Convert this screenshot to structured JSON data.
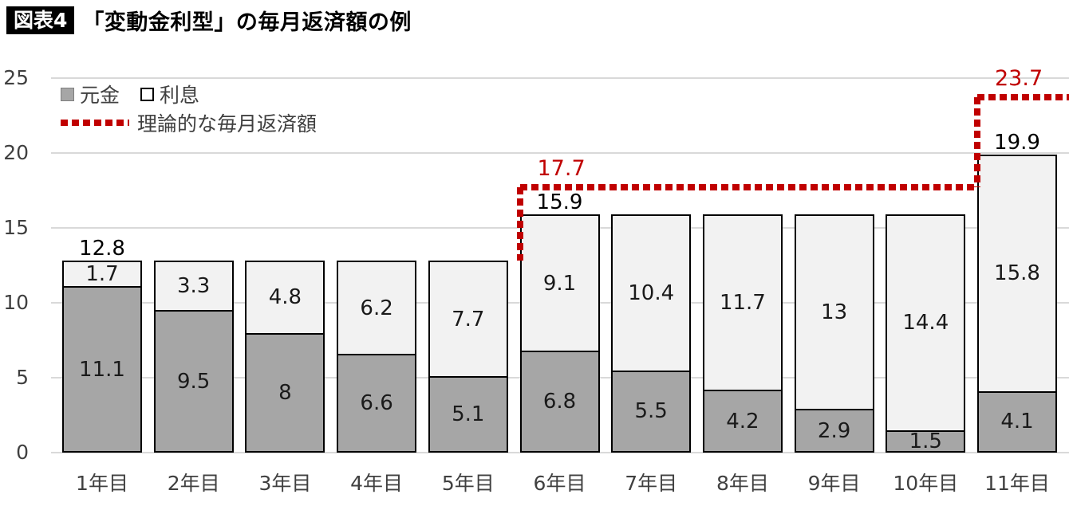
{
  "header": {
    "figure_label": "図表4"
  },
  "chart_data": {
    "type": "bar",
    "stacked": true,
    "title": "「変動金利型」の毎月返済額の例",
    "categories": [
      "1年目",
      "2年目",
      "3年目",
      "4年目",
      "5年目",
      "6年目",
      "7年目",
      "8年目",
      "9年目",
      "10年目",
      "11年目"
    ],
    "series": [
      {
        "name": "元金",
        "values": [
          11.1,
          9.5,
          8,
          6.6,
          5.1,
          6.8,
          5.5,
          4.2,
          2.9,
          1.5,
          4.1
        ]
      },
      {
        "name": "利息",
        "values": [
          1.7,
          3.3,
          4.8,
          6.2,
          7.7,
          9.1,
          10.4,
          11.7,
          13,
          14.4,
          15.8
        ]
      }
    ],
    "totals": [
      12.8,
      12.8,
      12.8,
      12.8,
      12.8,
      15.9,
      15.9,
      15.9,
      15.9,
      15.9,
      19.9
    ],
    "total_labels": [
      {
        "index": 0,
        "text": "12.8"
      },
      {
        "index": 5,
        "text": "15.9"
      },
      {
        "index": 10,
        "text": "19.9"
      }
    ],
    "theoretical_line": {
      "name": "理論的な毎月返済額",
      "segments": [
        {
          "orient": "v",
          "at_bar": 5,
          "v_from": 12.8,
          "v_to": 17.7
        },
        {
          "orient": "h",
          "value": 17.7,
          "from_bar": 5,
          "to_bar": 10
        },
        {
          "orient": "v",
          "at_bar": 10,
          "v_from": 17.7,
          "v_to": 23.7
        },
        {
          "orient": "h",
          "value": 23.7,
          "from_bar": 10,
          "to_edge": "right"
        }
      ],
      "labels": [
        {
          "text": "17.7",
          "bar": 5,
          "value": 17.7
        },
        {
          "text": "23.7",
          "bar": 10,
          "value": 23.7
        }
      ]
    },
    "yticks": [
      0,
      5,
      10,
      15,
      20,
      25
    ],
    "ylim": [
      0,
      25
    ],
    "grid": true,
    "legend_position": "top-left"
  },
  "colors": {
    "principal_fill": "#a6a6a6",
    "interest_fill": "#f2f2f2",
    "bar_border": "#000000",
    "theoretical_line": "#c00000",
    "gridline": "#d9d9d9",
    "axis_text": "#404040",
    "label_text": "#1a1a1a"
  }
}
